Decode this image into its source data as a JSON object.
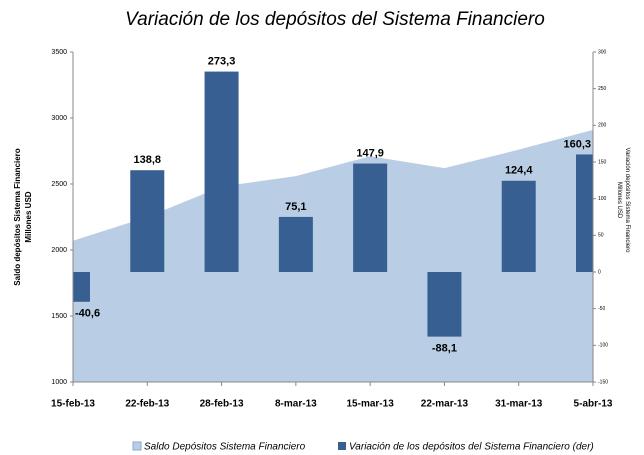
{
  "chart_data": {
    "type": "combo",
    "title": "Variación de los depósitos del Sistema Financiero",
    "categories": [
      "15-feb-13",
      "22-feb-13",
      "28-feb-13",
      "8-mar-13",
      "15-mar-13",
      "22-mar-13",
      "31-mar-13",
      "5-abr-13"
    ],
    "series": [
      {
        "name": "Saldo Depósitos Sistema Financiero",
        "type": "area",
        "axis": "y",
        "color": "#b9cde5",
        "values": [
          2070,
          2250,
          2480,
          2560,
          2710,
          2620,
          2760,
          2910
        ]
      },
      {
        "name": "Variación de los depósitos del Sistema Financiero (der)",
        "type": "bar",
        "axis": "y2",
        "color": "#375f92",
        "values": [
          -40.6,
          138.8,
          273.3,
          75.1,
          147.9,
          -88.1,
          124.4,
          160.3
        ],
        "value_labels": [
          "-40,6",
          "138,8",
          "273,3",
          "75,1",
          "147,9",
          "-88,1",
          "124,4",
          "160,3"
        ]
      }
    ],
    "ylabel": [
      "Saldo depósitos Sistema Financiero",
      "Millones USD"
    ],
    "y2label": [
      "Variación depósitos Sistema Financiero",
      "Millones USD"
    ],
    "ylim": [
      1000,
      3500
    ],
    "yticks": [
      1000,
      1500,
      2000,
      2500,
      3000,
      3500
    ],
    "y2lim": [
      -150,
      300
    ],
    "y2ticks": [
      -150,
      -100,
      -50,
      0,
      50,
      100,
      150,
      200,
      250,
      300
    ],
    "legend": "bottom"
  }
}
